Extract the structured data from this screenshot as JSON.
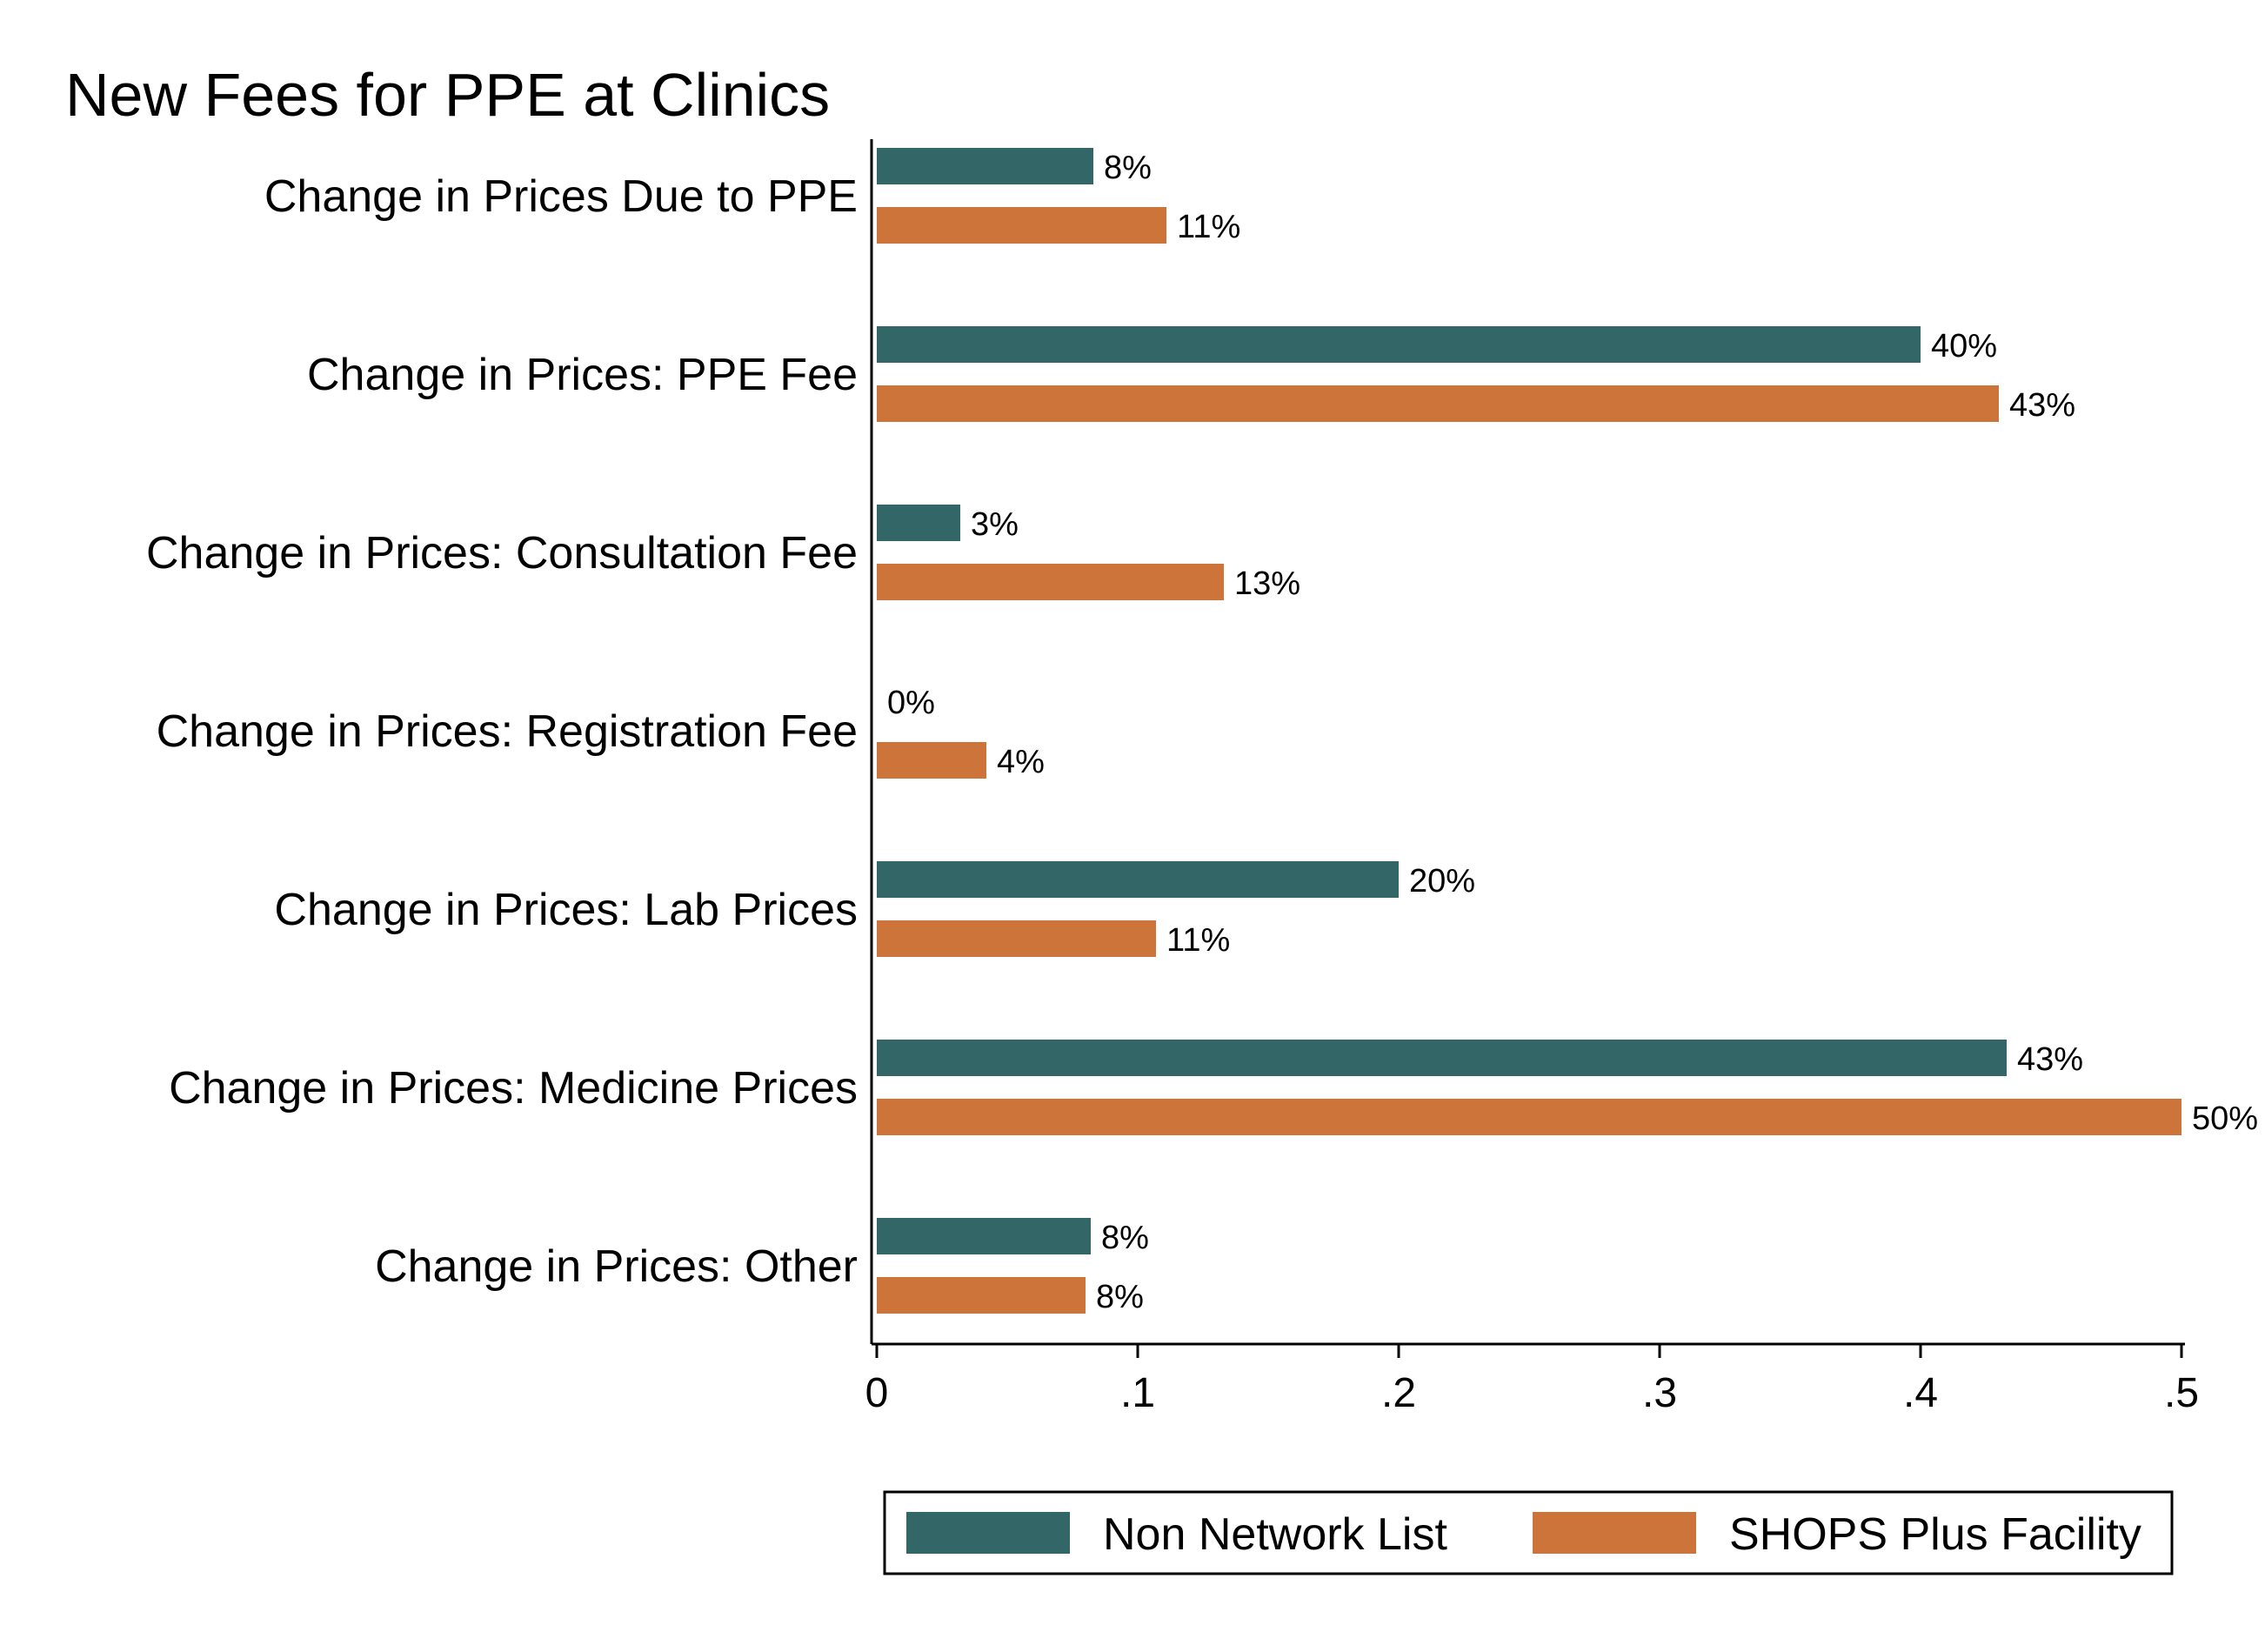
{
  "chart_data": {
    "type": "bar",
    "orientation": "horizontal",
    "title": "New Fees for PPE at Clinics",
    "xlabel": "",
    "ylabel": "",
    "categories": [
      "Change in Prices Due to PPE",
      "Change in Prices: PPE Fee",
      "Change in Prices: Consultation Fee",
      "Change in Prices: Registration Fee",
      "Change in Prices: Lab Prices",
      "Change in Prices: Medicine Prices",
      "Change in Prices: Other"
    ],
    "series": [
      {
        "name": "Non Network List",
        "color": "#336666",
        "values": [
          0.083,
          0.4,
          0.032,
          0.0,
          0.2,
          0.433,
          0.082
        ],
        "labels": [
          "8%",
          "40%",
          "3%",
          "0%",
          "20%",
          "43%",
          "8%"
        ]
      },
      {
        "name": "SHOPS Plus Facility",
        "color": "#cd743a",
        "values": [
          0.111,
          0.43,
          0.133,
          0.042,
          0.107,
          0.5,
          0.08
        ],
        "labels": [
          "11%",
          "43%",
          "13%",
          "4%",
          "11%",
          "50%",
          "8%"
        ]
      }
    ],
    "xlim": [
      0,
      0.5
    ],
    "xticks": [
      0,
      0.1,
      0.2,
      0.3,
      0.4,
      0.5
    ],
    "xtick_labels": [
      "0",
      ".1",
      ".2",
      ".3",
      ".4",
      ".5"
    ],
    "grid": false,
    "legend": {
      "position": "bottom",
      "entries": [
        "Non Network List",
        "SHOPS Plus Facility"
      ]
    }
  }
}
